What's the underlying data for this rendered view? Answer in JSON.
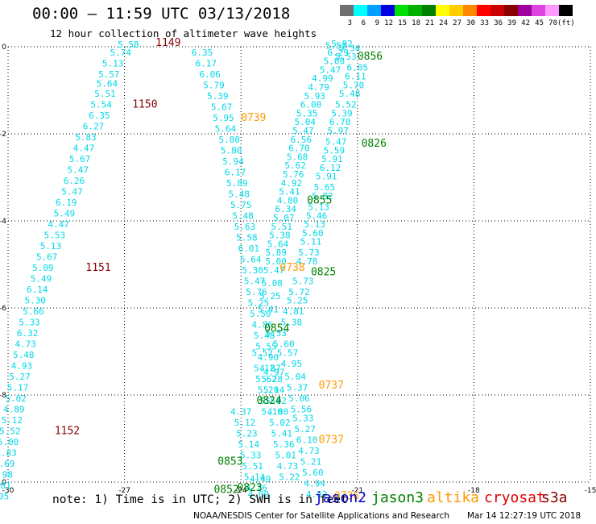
{
  "header": {
    "title": "00:00 – 11:59 UTC 03/13/2018",
    "subtitle": "12 hour collection of altimeter wave heights"
  },
  "colorbar": {
    "unit_label": "(ft)",
    "bins": [
      {
        "label": "3",
        "color": "#707070"
      },
      {
        "label": "6",
        "color": "#00ffff"
      },
      {
        "label": "9",
        "color": "#00a0ff"
      },
      {
        "label": "12",
        "color": "#0000e0"
      },
      {
        "label": "15",
        "color": "#00e000"
      },
      {
        "label": "18",
        "color": "#00b000"
      },
      {
        "label": "21",
        "color": "#008000"
      },
      {
        "label": "24",
        "color": "#ffff00"
      },
      {
        "label": "27",
        "color": "#ffcc00"
      },
      {
        "label": "30",
        "color": "#ff8800"
      },
      {
        "label": "33",
        "color": "#ff0000"
      },
      {
        "label": "36",
        "color": "#cc0000"
      },
      {
        "label": "39",
        "color": "#880000"
      },
      {
        "label": "42",
        "color": "#a000a0"
      },
      {
        "label": "45",
        "color": "#dd44dd"
      },
      {
        "label": "70",
        "color": "#ff99ff"
      },
      {
        "label": "",
        "color": "#000000"
      }
    ]
  },
  "legend": {
    "note": "note: 1) Time is in UTC; 2) SWH is in feet",
    "items": [
      {
        "label": "jason2",
        "color": "#0000cc"
      },
      {
        "label": "jason3",
        "color": "#008000"
      },
      {
        "label": "altika",
        "color": "#ff9900"
      },
      {
        "label": "cryosat",
        "color": "#dd0000"
      },
      {
        "label": "s3a",
        "color": "#880000"
      }
    ]
  },
  "footer": {
    "credit": "NOAA/NESDIS Center for Satellite Applications and Research",
    "timestamp": "Mar 14 12:27:19 UTC 2018"
  },
  "chart_data": {
    "type": "scatter",
    "title": "00:00 – 11:59 UTC 03/13/2018",
    "subtitle": "12 hour collection of altimeter wave heights",
    "xlim": [
      -30,
      -15
    ],
    "ylim": [
      -10,
      0
    ],
    "xticks": [
      "-30",
      "-27",
      "-24",
      "-21",
      "-18",
      "-15"
    ],
    "yticks": [
      "0",
      "-2",
      "-4",
      "-6",
      "-8",
      "-10"
    ],
    "grid": true,
    "value_color": "#00d8e8",
    "series": [
      {
        "name": "s3a",
        "color": "#880000",
        "values": [
          [
            "5.58",
            -26.9,
            -0.02
          ],
          [
            "5.74",
            -27.1,
            -0.2
          ],
          [
            "5.13",
            -27.3,
            -0.45
          ],
          [
            "5.57",
            -27.4,
            -0.7
          ],
          [
            "5.64",
            -27.45,
            -0.92
          ],
          [
            "5.51",
            -27.5,
            -1.15
          ],
          [
            "5.54",
            -27.6,
            -1.4
          ],
          [
            "6.35",
            -27.65,
            -1.65
          ],
          [
            "6.27",
            -27.8,
            -1.9
          ],
          [
            "5.83",
            -28.0,
            -2.15
          ],
          [
            "4.47",
            -28.05,
            -2.4
          ],
          [
            "5.67",
            -28.15,
            -2.65
          ],
          [
            "5.47",
            -28.2,
            -2.9
          ],
          [
            "6.26",
            -28.3,
            -3.15
          ],
          [
            "5.47",
            -28.35,
            -3.4
          ],
          [
            "6.19",
            -28.5,
            -3.65
          ],
          [
            "5.49",
            -28.55,
            -3.9
          ],
          [
            "4.47",
            -28.7,
            -4.15
          ],
          [
            "5.53",
            -28.8,
            -4.4
          ],
          [
            "5.13",
            -28.9,
            -4.65
          ],
          [
            "5.67",
            -29.0,
            -4.9
          ],
          [
            "5.09",
            -29.1,
            -5.15
          ],
          [
            "5.49",
            -29.15,
            -5.4
          ],
          [
            "6.14",
            -29.25,
            -5.65
          ],
          [
            "5.30",
            -29.3,
            -5.9
          ],
          [
            "5.66",
            -29.35,
            -6.15
          ],
          [
            "5.33",
            -29.45,
            -6.4
          ],
          [
            "6.32",
            -29.5,
            -6.65
          ],
          [
            "4.73",
            -29.55,
            -6.9
          ],
          [
            "5.48",
            -29.6,
            -7.15
          ],
          [
            "4.93",
            -29.65,
            -7.4
          ],
          [
            "5.27",
            -29.7,
            -7.65
          ],
          [
            "5.17",
            -29.75,
            -7.9
          ],
          [
            "5.02",
            -29.8,
            -8.15
          ],
          [
            "4.89",
            -29.85,
            -8.4
          ],
          [
            "5.12",
            -29.9,
            -8.65
          ],
          [
            "5.52",
            -29.95,
            -8.9
          ],
          [
            "5.00",
            -30.0,
            -9.15
          ],
          [
            "3.83",
            -30.05,
            -9.4
          ],
          [
            "5.69",
            -30.1,
            -9.65
          ],
          [
            "4.98",
            -30.15,
            -9.9
          ],
          [
            "5.81",
            -30.2,
            -10.15
          ],
          [
            "5.05",
            -30.25,
            -10.4
          ]
        ],
        "time_labels": [
          {
            "time": "1149",
            "x": -26.2,
            "y": 0.02
          },
          {
            "time": "1150",
            "x": -26.8,
            "y": -1.4
          },
          {
            "time": "1151",
            "x": -28.0,
            "y": -5.15
          },
          {
            "time": "1152",
            "x": -28.8,
            "y": -8.9
          }
        ]
      },
      {
        "name": "jason3",
        "color": "#008000",
        "values": [
          [
            "6.35",
            -25.0,
            -0.2
          ],
          [
            "6.17",
            -24.9,
            -0.45
          ],
          [
            "6.06",
            -24.8,
            -0.7
          ],
          [
            "5.79",
            -24.7,
            -0.95
          ],
          [
            "5.39",
            -24.6,
            -1.2
          ],
          [
            "5.67",
            -24.5,
            -1.45
          ],
          [
            "5.95",
            -24.45,
            -1.7
          ],
          [
            "5.64",
            -24.4,
            -1.95
          ],
          [
            "5.80",
            -24.3,
            -2.2
          ],
          [
            "5.80",
            -24.25,
            -2.45
          ],
          [
            "5.94",
            -24.2,
            -2.7
          ],
          [
            "6.17",
            -24.15,
            -2.95
          ],
          [
            "5.89",
            -24.1,
            -3.2
          ],
          [
            "5.48",
            -24.05,
            -3.45
          ],
          [
            "5.75",
            -24.0,
            -3.7
          ],
          [
            "5.48",
            -23.95,
            -3.95
          ],
          [
            "5.63",
            -23.9,
            -4.2
          ],
          [
            "5.58",
            -23.85,
            -4.45
          ],
          [
            "6.01",
            -23.8,
            -4.7
          ],
          [
            "5.64",
            -23.75,
            -4.95
          ],
          [
            "5.30",
            -23.7,
            -5.2
          ],
          [
            "5.47",
            -23.65,
            -5.45
          ],
          [
            "5.76",
            -23.6,
            -5.7
          ],
          [
            "5.25",
            -23.55,
            -5.95
          ],
          [
            "5.50",
            -23.5,
            -6.2
          ],
          [
            "4.86",
            -23.45,
            -6.45
          ],
          [
            "5.48",
            -23.4,
            -6.7
          ],
          [
            "5.55",
            -23.35,
            -6.95
          ],
          [
            "4.90",
            -23.3,
            -7.2
          ],
          [
            "4.87",
            -23.25,
            -7.45
          ],
          [
            "5.28",
            -23.2,
            -7.7
          ],
          [
            "5.14",
            -23.15,
            -7.95
          ],
          [
            "5.02",
            -23.1,
            -8.2
          ],
          [
            "4.80",
            -23.05,
            -8.45
          ],
          [
            "5.02",
            -23.0,
            -8.7
          ],
          [
            "5.41",
            -22.95,
            -8.95
          ],
          [
            "5.36",
            -22.9,
            -9.2
          ],
          [
            "5.01",
            -22.85,
            -9.45
          ],
          [
            "4.73",
            -22.8,
            -9.7
          ],
          [
            "5.22",
            -22.75,
            -9.95
          ]
        ],
        "time_labels": [
          {
            "time": "0856",
            "x": -21.0,
            "y": -0.3
          },
          {
            "time": "0826",
            "x": -20.9,
            "y": -2.3
          },
          {
            "time": "0855",
            "x": -22.3,
            "y": -3.6
          },
          {
            "time": "0825",
            "x": -22.2,
            "y": -5.25
          },
          {
            "time": "0854",
            "x": -23.4,
            "y": -6.55
          },
          {
            "time": "0824",
            "x": -23.6,
            "y": -8.2
          },
          {
            "time": "0853",
            "x": -24.6,
            "y": -9.6
          },
          {
            "time": "0823",
            "x": -24.1,
            "y": -10.2
          },
          {
            "time": "0852",
            "x": -24.7,
            "y": -10.25
          }
        ]
      },
      {
        "name": "altika",
        "color": "#ff9900",
        "values": [
          [
            "5.92",
            -21.4,
            0.0
          ],
          [
            "5.34",
            -21.2,
            -0.1
          ],
          [
            "6.29",
            -21.5,
            -0.2
          ],
          [
            "5.53",
            -21.3,
            -0.3
          ],
          [
            "5.08",
            -21.6,
            -0.4
          ],
          [
            "5.47",
            -21.7,
            -0.6
          ],
          [
            "4.99",
            -21.9,
            -0.8
          ],
          [
            "4.79",
            -22.0,
            -1.0
          ],
          [
            "5.93",
            -22.1,
            -1.2
          ],
          [
            "6.00",
            -22.2,
            -1.4
          ],
          [
            "5.35",
            -22.3,
            -1.6
          ],
          [
            "5.04",
            -22.35,
            -1.8
          ],
          [
            "5.47",
            -22.4,
            -2.0
          ],
          [
            "6.56",
            -22.45,
            -2.2
          ],
          [
            "6.70",
            -22.5,
            -2.4
          ],
          [
            "5.68",
            -22.55,
            -2.6
          ],
          [
            "5.62",
            -22.6,
            -2.8
          ],
          [
            "5.76",
            -22.65,
            -3.0
          ],
          [
            "4.92",
            -22.7,
            -3.2
          ],
          [
            "5.41",
            -22.75,
            -3.4
          ],
          [
            "4.80",
            -22.8,
            -3.6
          ],
          [
            "6.34",
            -22.85,
            -3.8
          ],
          [
            "5.07",
            -22.9,
            -4.0
          ],
          [
            "5.51",
            -22.95,
            -4.2
          ],
          [
            "5.38",
            -23.0,
            -4.4
          ],
          [
            "5.64",
            -23.05,
            -4.6
          ],
          [
            "5.89",
            -23.1,
            -4.8
          ],
          [
            "5.00",
            -23.1,
            -5.0
          ],
          [
            "5.47",
            -23.15,
            -5.2
          ],
          [
            "5.08",
            -23.2,
            -5.5
          ],
          [
            "5.25",
            -23.25,
            -5.8
          ],
          [
            "5.41",
            -23.3,
            -6.1
          ],
          [
            "5.60",
            -22.9,
            -6.9
          ],
          [
            "5.57",
            -22.8,
            -7.1
          ],
          [
            "4.95",
            -22.7,
            -7.35
          ],
          [
            "5.04",
            -22.6,
            -7.65
          ],
          [
            "5.37",
            -22.55,
            -7.9
          ],
          [
            "5.06",
            -22.5,
            -8.15
          ],
          [
            "5.56",
            -22.45,
            -8.4
          ],
          [
            "5.33",
            -22.4,
            -8.6
          ],
          [
            "5.27",
            -22.35,
            -8.85
          ],
          [
            "6.10",
            -22.3,
            -9.1
          ],
          [
            "4.73",
            -22.25,
            -9.35
          ],
          [
            "5.21",
            -22.2,
            -9.6
          ],
          [
            "5.60",
            -22.15,
            -9.85
          ],
          [
            "4.94",
            -22.1,
            -10.1
          ],
          [
            "4.92",
            -22.05,
            -10.35
          ]
        ],
        "time_labels": [
          {
            "time": "0739",
            "x": -24.0,
            "y": -1.7
          },
          {
            "time": "0738",
            "x": -23.0,
            "y": -5.15
          },
          {
            "time": "0737",
            "x": -22.0,
            "y": -7.85
          },
          {
            "time": "0737",
            "x": -22.0,
            "y": -9.1
          },
          {
            "time": "0736",
            "x": -21.6,
            "y": -10.4
          }
        ]
      },
      {
        "name": "jason2",
        "color": "#0000cc",
        "values": [
          [
            "5.53",
            -21.55,
            -0.05
          ],
          [
            "6.05",
            -21.0,
            -0.55
          ],
          [
            "6.11",
            -21.05,
            -0.75
          ],
          [
            "5.70",
            -21.1,
            -0.95
          ],
          [
            "5.48",
            -21.2,
            -1.15
          ],
          [
            "5.52",
            -21.3,
            -1.4
          ],
          [
            "5.39",
            -21.4,
            -1.6
          ],
          [
            "6.70",
            -21.45,
            -1.8
          ],
          [
            "5.97",
            -21.5,
            -2.0
          ],
          [
            "5.47",
            -21.55,
            -2.25
          ],
          [
            "5.59",
            -21.6,
            -2.45
          ],
          [
            "5.91",
            -21.65,
            -2.65
          ],
          [
            "6.12",
            -21.7,
            -2.85
          ],
          [
            "5.91",
            -21.8,
            -3.05
          ],
          [
            "5.65",
            -21.85,
            -3.3
          ],
          [
            "5.82",
            -21.9,
            -3.5
          ],
          [
            "5.13",
            -22.0,
            -3.75
          ],
          [
            "5.46",
            -22.05,
            -3.95
          ],
          [
            "5.13",
            -22.1,
            -4.15
          ],
          [
            "5.60",
            -22.15,
            -4.35
          ],
          [
            "5.11",
            -22.2,
            -4.55
          ],
          [
            "5.73",
            -22.25,
            -4.8
          ],
          [
            "4.78",
            -22.3,
            -5.0
          ],
          [
            "5.73",
            -22.4,
            -5.45
          ],
          [
            "5.72",
            -22.5,
            -5.7
          ],
          [
            "5.25",
            -22.55,
            -5.9
          ],
          [
            "4.81",
            -22.65,
            -6.15
          ],
          [
            "5.38",
            -22.7,
            -6.4
          ]
        ],
        "time_labels": []
      },
      {
        "name": "cryosat",
        "color": "#dd0000",
        "values": [
          [
            "4.37",
            -24.0,
            -8.45
          ],
          [
            "5.12",
            -23.9,
            -8.7
          ],
          [
            "5.23",
            -23.85,
            -8.95
          ],
          [
            "5.14",
            -23.8,
            -9.2
          ],
          [
            "5.33",
            -23.75,
            -9.45
          ],
          [
            "5.51",
            -23.7,
            -9.7
          ],
          [
            "5.14",
            -23.65,
            -9.95
          ],
          [
            "4.26",
            -23.6,
            -10.2
          ],
          [
            "4.09",
            -23.55,
            -10.35
          ],
          [
            "4.49",
            -23.5,
            -10.0
          ],
          [
            "5.52",
            -23.45,
            -7.1
          ],
          [
            "5.12",
            -23.4,
            -7.45
          ],
          [
            "5.62",
            -23.35,
            -7.7
          ],
          [
            "5.20",
            -23.3,
            -7.95
          ],
          [
            "5.54",
            -23.25,
            -8.2
          ],
          [
            "5.10",
            -23.2,
            -8.45
          ],
          [
            "4.97",
            -23.15,
            -7.55
          ],
          [
            "5.53",
            -23.1,
            -6.65
          ]
        ],
        "time_labels": []
      }
    ]
  }
}
